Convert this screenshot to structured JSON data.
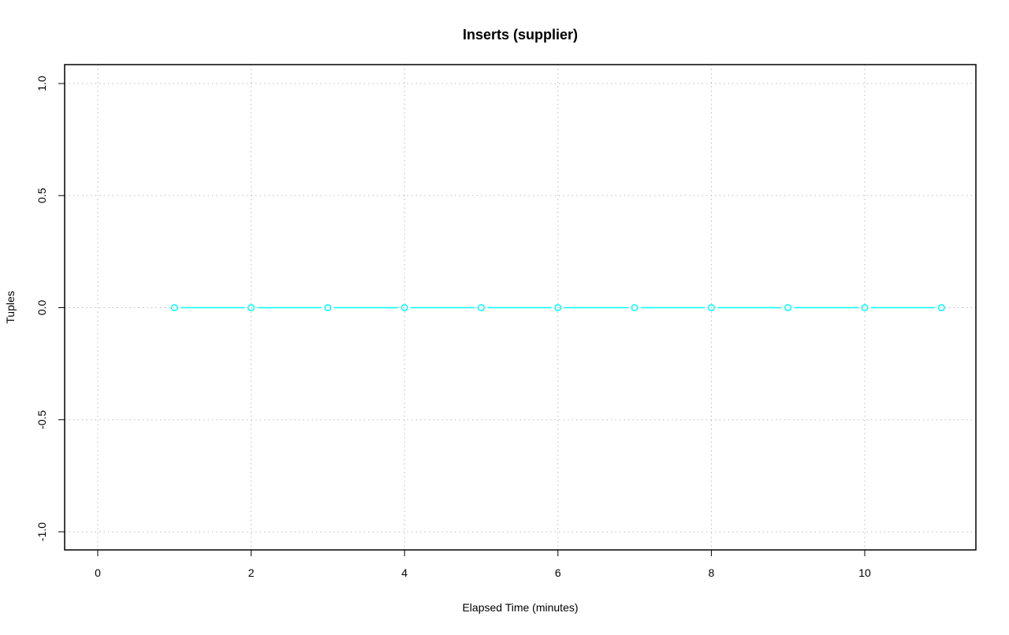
{
  "chart_data": {
    "type": "line",
    "title": "Inserts (supplier)",
    "xlabel": "Elapsed Time (minutes)",
    "ylabel": "Tuples",
    "xlim": [
      -0.4,
      11.5
    ],
    "ylim": [
      -1.08,
      1.08
    ],
    "xticks": [
      0,
      2,
      4,
      6,
      8,
      10
    ],
    "xtick_labels": [
      "0",
      "2",
      "4",
      "6",
      "8",
      "10"
    ],
    "yticks": [
      -1.0,
      -0.5,
      0.0,
      0.5,
      1.0
    ],
    "ytick_labels": [
      "-1.0",
      "-0.5",
      "0.0",
      "0.5",
      "1.0"
    ],
    "grid": true,
    "series": [
      {
        "color": "#00FFFF",
        "marker": "open-circle",
        "x": [
          1,
          2,
          3,
          4,
          5,
          6,
          7,
          8,
          9,
          10,
          11
        ],
        "y": [
          0,
          0,
          0,
          0,
          0,
          0,
          0,
          0,
          0,
          0,
          0
        ]
      }
    ]
  }
}
